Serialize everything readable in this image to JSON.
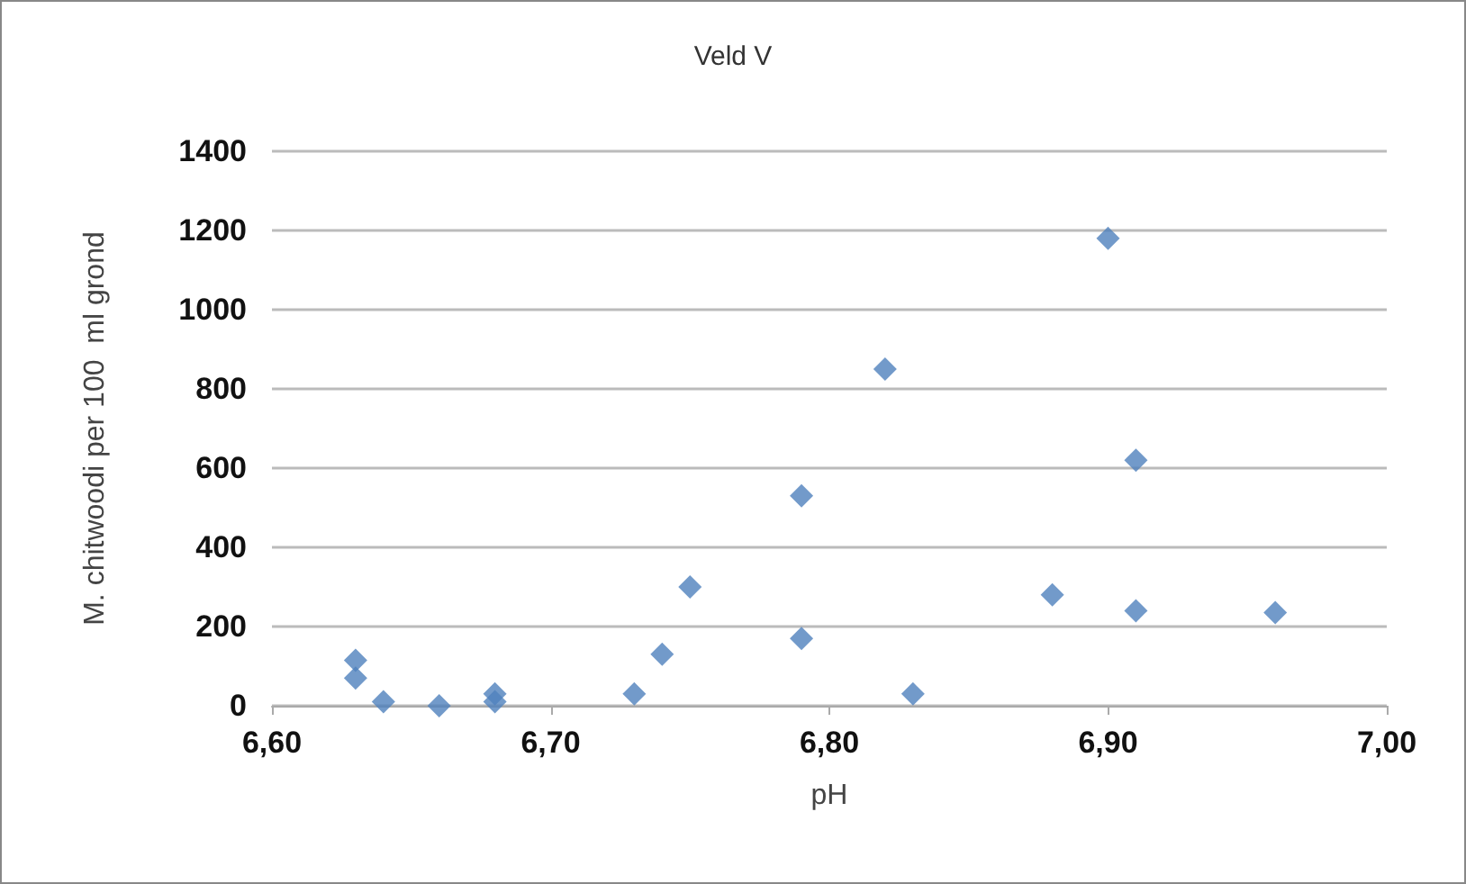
{
  "chart_data": {
    "type": "scatter",
    "title": "Veld V",
    "xlabel": "pH",
    "ylabel": "M. chitwoodi per 100  ml grond",
    "x": [
      6.63,
      6.63,
      6.64,
      6.66,
      6.68,
      6.68,
      6.73,
      6.74,
      6.75,
      6.79,
      6.79,
      6.82,
      6.83,
      6.88,
      6.9,
      6.91,
      6.91,
      6.96
    ],
    "series": [
      {
        "color": "#4f81bd",
        "values": [
          115,
          70,
          10,
          0,
          30,
          10,
          30,
          130,
          300,
          530,
          170,
          850,
          30,
          280,
          1180,
          620,
          240,
          235
        ]
      }
    ],
    "xlim": [
      6.6,
      7.0
    ],
    "xticks": [
      {
        "value": 6.6,
        "label": "6,60"
      },
      {
        "value": 6.7,
        "label": "6,70"
      },
      {
        "value": 6.8,
        "label": "6,80"
      },
      {
        "value": 6.9,
        "label": "6,90"
      },
      {
        "value": 7.0,
        "label": "7,00"
      }
    ],
    "ylim": [
      0,
      1400
    ],
    "yticks": [
      0,
      200,
      400,
      600,
      800,
      1000,
      1200,
      1400
    ],
    "grid": "y",
    "marker": "diamond"
  }
}
